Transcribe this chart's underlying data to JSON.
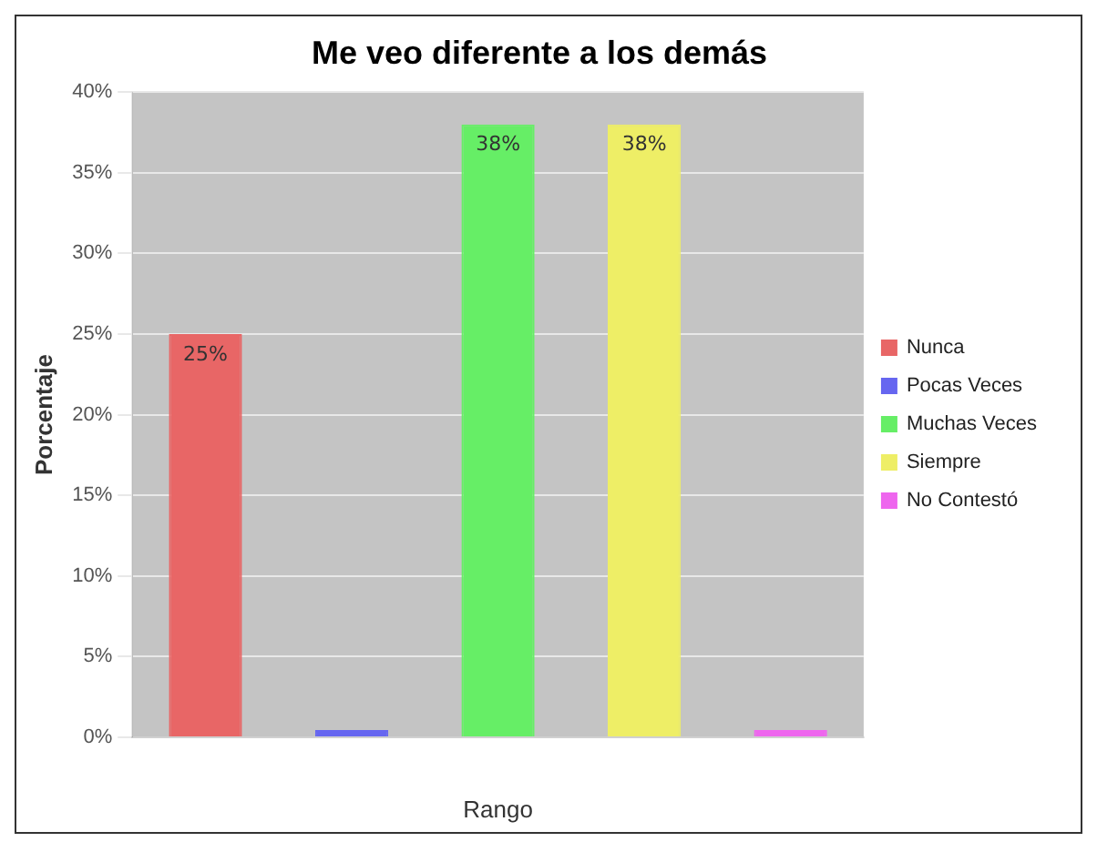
{
  "chart_data": {
    "type": "bar",
    "title": "Me veo diferente a los demás",
    "xlabel": "Rango",
    "ylabel": "Porcentaje",
    "categories": [
      null,
      null,
      null,
      null,
      null
    ],
    "series": [
      {
        "name": "Nunca",
        "color": "#e86666",
        "values": [
          25,
          null,
          null,
          null,
          null
        ],
        "value_labels": [
          "25%",
          null,
          null,
          null,
          null
        ]
      },
      {
        "name": "Pocas Veces",
        "color": "#6666f0",
        "values": [
          null,
          0,
          null,
          null,
          null
        ]
      },
      {
        "name": "Muchas Veces",
        "color": "#66ee66",
        "values": [
          null,
          null,
          38,
          null,
          null
        ],
        "value_labels": [
          null,
          null,
          "38%",
          null,
          null
        ]
      },
      {
        "name": "Siempre",
        "color": "#eeee66",
        "values": [
          null,
          null,
          null,
          38,
          null
        ],
        "value_labels": [
          null,
          null,
          null,
          "38%",
          null
        ]
      },
      {
        "name": "No Contestó",
        "color": "#ee66ee",
        "values": [
          null,
          null,
          null,
          null,
          0
        ]
      }
    ],
    "ylim": [
      0,
      40
    ],
    "yticks": [
      {
        "value": 0,
        "label": "0%"
      },
      {
        "value": 5,
        "label": "5%"
      },
      {
        "value": 10,
        "label": "10%"
      },
      {
        "value": 15,
        "label": "15%"
      },
      {
        "value": 20,
        "label": "20%"
      },
      {
        "value": 25,
        "label": "25%"
      },
      {
        "value": 30,
        "label": "30%"
      },
      {
        "value": 35,
        "label": "35%"
      },
      {
        "value": 40,
        "label": "40%"
      }
    ],
    "grid": "y",
    "legend": "right"
  }
}
